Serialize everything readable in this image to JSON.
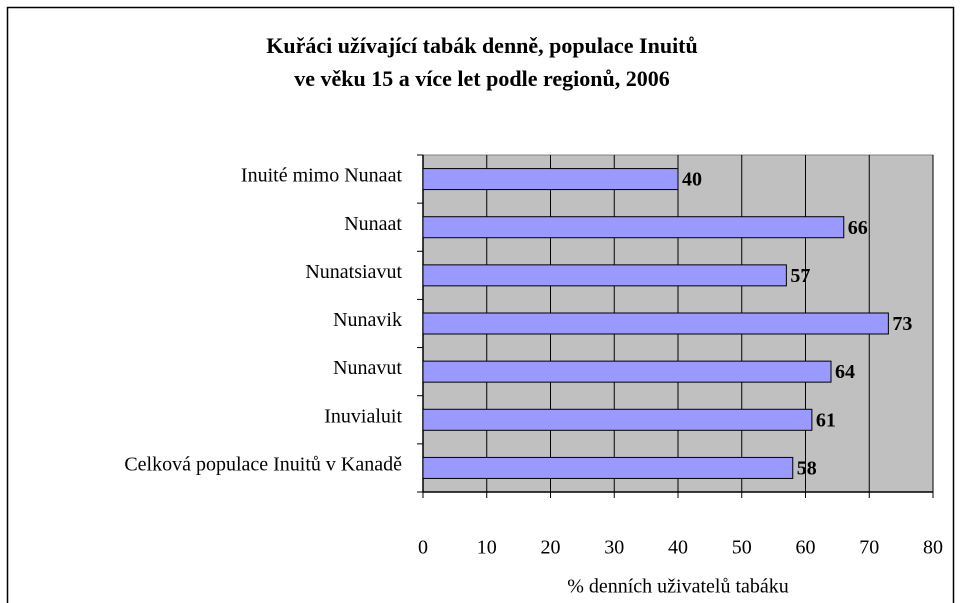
{
  "chart_data": {
    "type": "bar",
    "orientation": "horizontal",
    "title": [
      "Kuřáci užívající tabák denně, populace Inuitů",
      "ve věku 15 a více let podle regionů, 2006"
    ],
    "categories": [
      "Inuité mimo Nunaat",
      "Nunaat",
      "Nunatsiavut",
      "Nunavik",
      "Nunavut",
      "Inuvialuit",
      "Celková populace Inuitů v Kanadě"
    ],
    "values": [
      40,
      66,
      57,
      73,
      64,
      61,
      58
    ],
    "color": "#9999ff",
    "xlabel": "% denních uživatelů tabáku",
    "xlim": [
      0,
      80
    ],
    "xticks": [
      0,
      10,
      20,
      30,
      40,
      50,
      60,
      70,
      80
    ],
    "grid": true,
    "plot_background": "#c0c0c0"
  }
}
